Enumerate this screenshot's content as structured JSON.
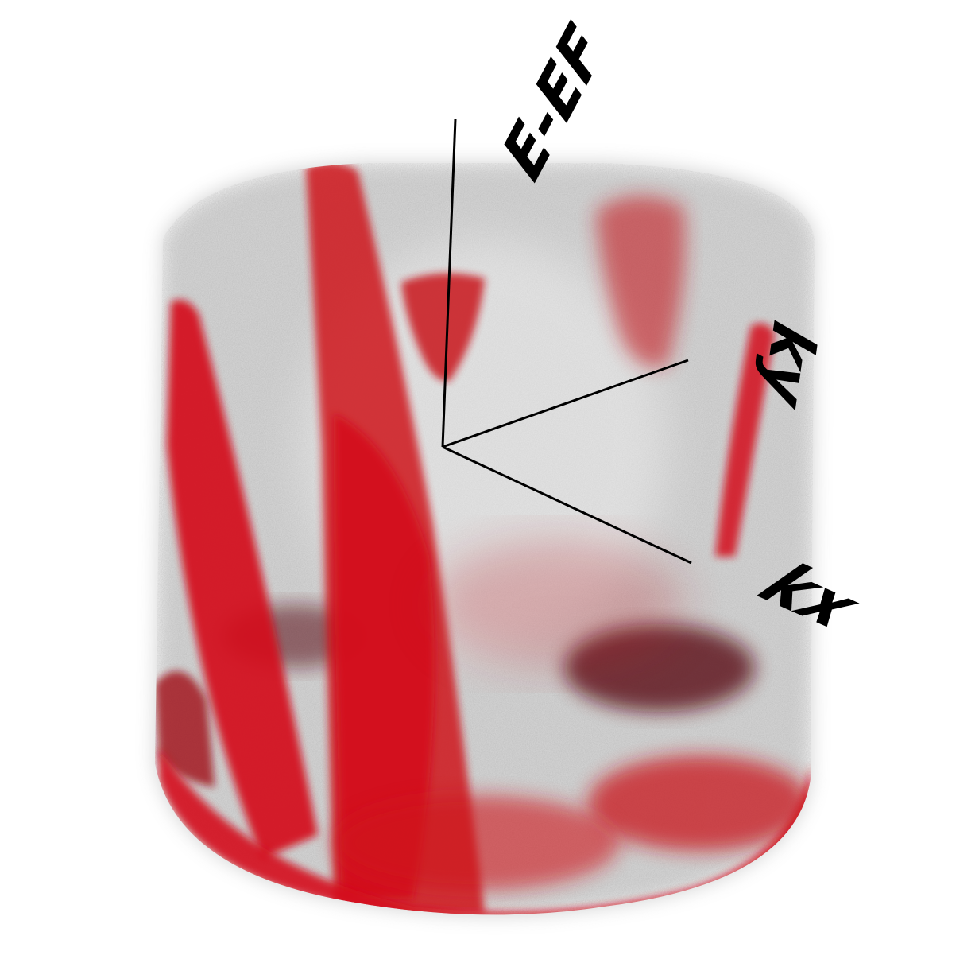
{
  "axes": {
    "energy_label": "E-EF",
    "ky_label": "ky",
    "kx_label": "kx"
  },
  "colors": {
    "background": "#ffffff",
    "haze": "#8a8a8a",
    "intensity": "#d4111a",
    "dark_band": "#6a1218",
    "axis_line": "#000000"
  }
}
